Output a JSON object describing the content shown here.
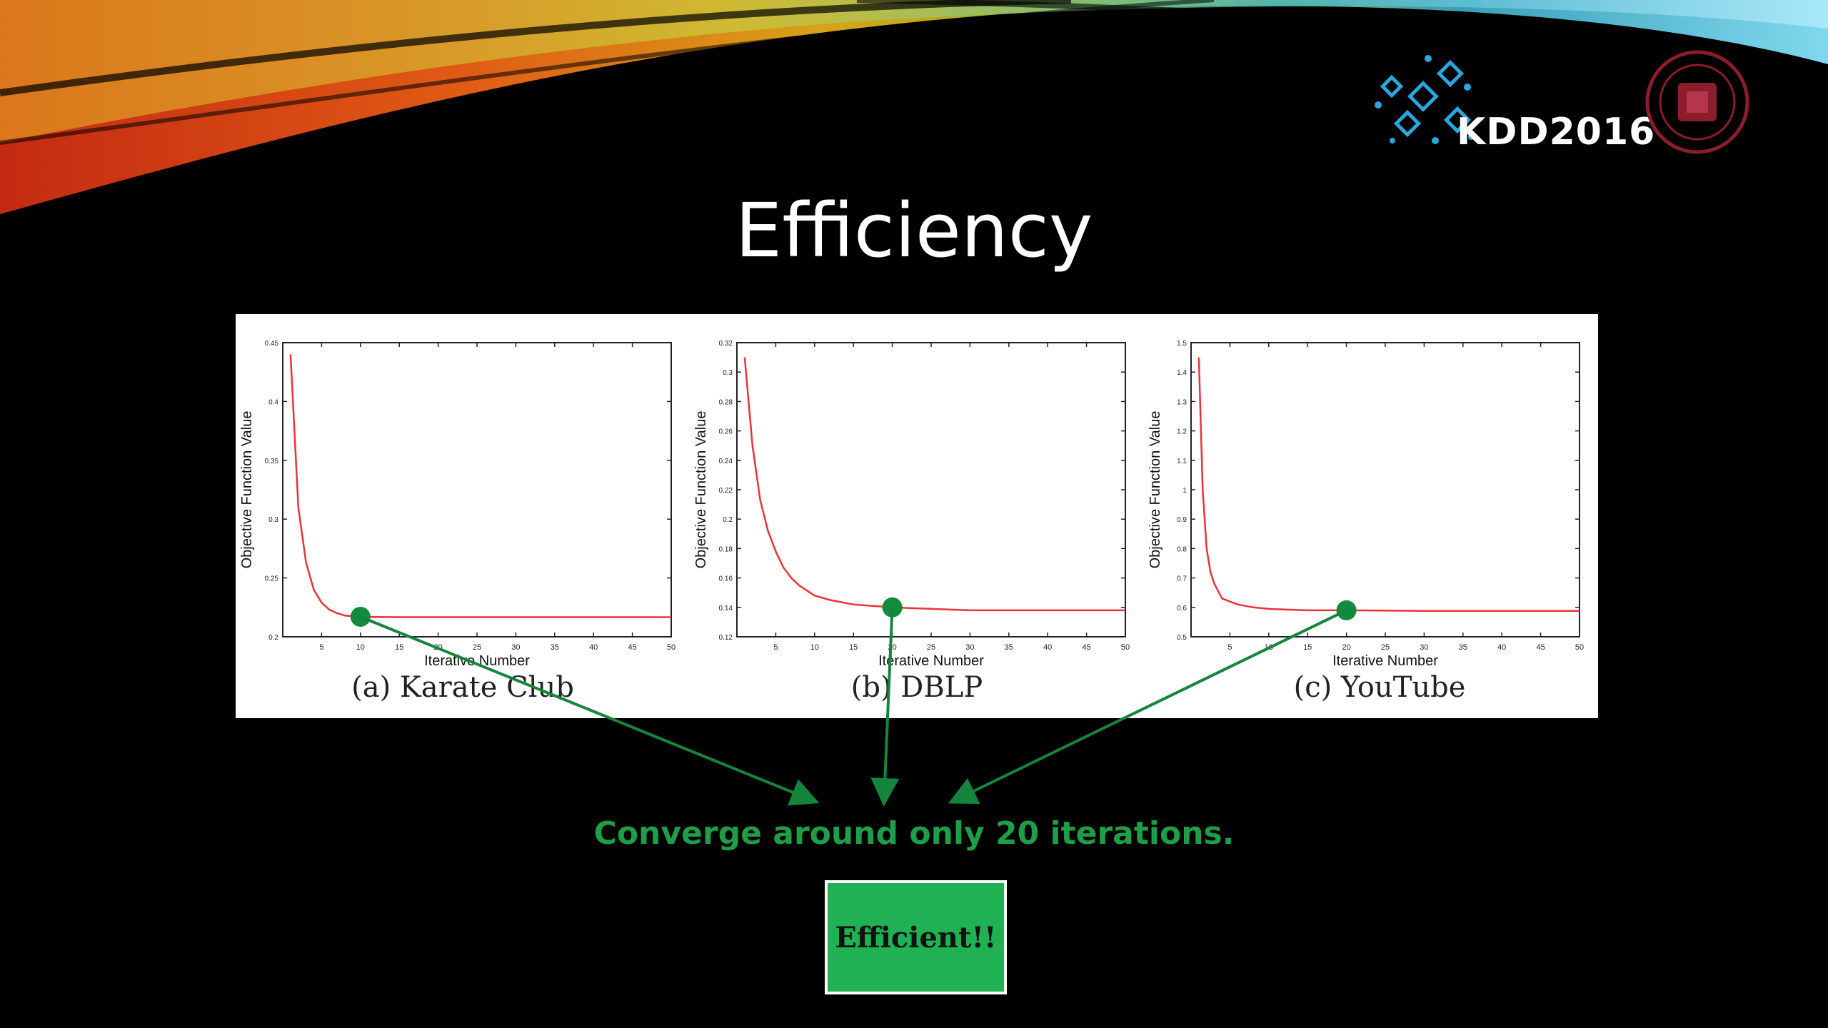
{
  "slide": {
    "title": "Efficiency",
    "logo_text": "KDD2016",
    "conclusion": "Converge around only 20 iterations.",
    "badge": "Efficient!!"
  },
  "colors": {
    "curve": "#e8333a",
    "marker": "#138a3c",
    "arrow": "#15853d",
    "conclusion_text": "#1e9e48",
    "badge_fill": "#1fb154"
  },
  "chart_data": [
    {
      "type": "line",
      "caption": "(a) Karate Club",
      "xlabel": "Iterative Number",
      "ylabel": "Objective Function Value",
      "xlim": [
        0,
        50
      ],
      "ylim": [
        0.2,
        0.45
      ],
      "xticks": [
        5,
        10,
        15,
        20,
        25,
        30,
        35,
        40,
        45,
        50
      ],
      "yticks": [
        0.2,
        0.25,
        0.3,
        0.35,
        0.4,
        0.45
      ],
      "ytick_labels": [
        "0.2",
        "0.25",
        "0.3",
        "0.35",
        "0.4",
        "0.45"
      ],
      "x": [
        1,
        2,
        3,
        4,
        5,
        6,
        7,
        8,
        9,
        10,
        12,
        15,
        20,
        30,
        40,
        50
      ],
      "y": [
        0.44,
        0.31,
        0.263,
        0.24,
        0.229,
        0.223,
        0.22,
        0.218,
        0.2175,
        0.217,
        0.2168,
        0.2167,
        0.2167,
        0.2167,
        0.2167,
        0.2167
      ],
      "marker": {
        "x": 10,
        "y": 0.217
      }
    },
    {
      "type": "line",
      "caption": "(b) DBLP",
      "xlabel": "Iterative Number",
      "ylabel": "Objective Function Value",
      "xlim": [
        0,
        50
      ],
      "ylim": [
        0.12,
        0.32
      ],
      "xticks": [
        5,
        10,
        15,
        20,
        25,
        30,
        35,
        40,
        45,
        50
      ],
      "yticks": [
        0.12,
        0.14,
        0.16,
        0.18,
        0.2,
        0.22,
        0.24,
        0.26,
        0.28,
        0.3,
        0.32
      ],
      "ytick_labels": [
        "0.12",
        "0.14",
        "0.16",
        "0.18",
        "0.2",
        "0.22",
        "0.24",
        "0.26",
        "0.28",
        "0.3",
        "0.32"
      ],
      "x": [
        1,
        2,
        3,
        4,
        5,
        6,
        7,
        8,
        10,
        12,
        15,
        20,
        25,
        30,
        40,
        50
      ],
      "y": [
        0.31,
        0.25,
        0.213,
        0.192,
        0.178,
        0.167,
        0.16,
        0.155,
        0.148,
        0.145,
        0.142,
        0.14,
        0.139,
        0.138,
        0.138,
        0.138
      ],
      "marker": {
        "x": 20,
        "y": 0.14
      }
    },
    {
      "type": "line",
      "caption": "(c) YouTube",
      "xlabel": "Iterative Number",
      "ylabel": "Objective Function Value",
      "xlim": [
        0,
        50
      ],
      "ylim": [
        0.5,
        1.5
      ],
      "xticks": [
        5,
        10,
        15,
        20,
        25,
        30,
        35,
        40,
        45,
        50
      ],
      "yticks": [
        0.5,
        0.6,
        0.7,
        0.8,
        0.9,
        1.0,
        1.1,
        1.2,
        1.3,
        1.4,
        1.5
      ],
      "ytick_labels": [
        "0.5",
        "0.6",
        "0.7",
        "0.8",
        "0.9",
        "1",
        "1.1",
        "1.2",
        "1.3",
        "1.4",
        "1.5"
      ],
      "x": [
        1,
        1.5,
        2,
        2.5,
        3,
        4,
        5,
        6,
        8,
        10,
        15,
        20,
        30,
        40,
        50
      ],
      "y": [
        1.45,
        1.0,
        0.8,
        0.72,
        0.68,
        0.63,
        0.62,
        0.61,
        0.6,
        0.595,
        0.59,
        0.59,
        0.588,
        0.588,
        0.588
      ],
      "marker": {
        "x": 20,
        "y": 0.59
      }
    }
  ]
}
